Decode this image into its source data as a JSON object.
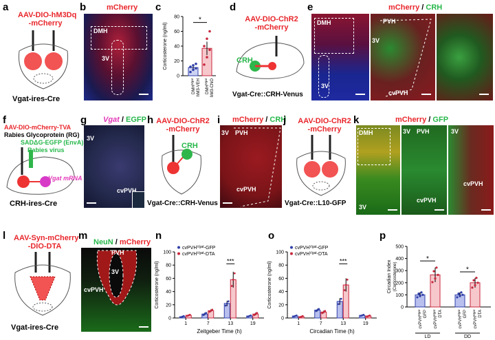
{
  "labels": {
    "a": "a",
    "b": "b",
    "c": "c",
    "d": "d",
    "e": "e",
    "f": "f",
    "g": "g",
    "h": "h",
    "i": "i",
    "j": "j",
    "k": "k",
    "l": "l",
    "m": "m",
    "n": "n",
    "o": "o",
    "p": "p"
  },
  "a": {
    "virus_line1": "AAV-DIO-hM3Dq",
    "virus_line2": "-mCherry",
    "mouse": "Vgat-ires-Cre"
  },
  "b": {
    "title": "mCherry",
    "region": "DMH",
    "ventricle": "3V"
  },
  "c": {
    "ylabel": "Corticosterone (ng/ml)",
    "sig": "*",
    "cat1_line1": "DMH",
    "cat1_sup": "Vgat",
    "cat1_line2": "hM3-VEH",
    "cat2_line1": "DMH",
    "cat2_sup": "Vgat",
    "cat2_line2": "hM3-CNO"
  },
  "d": {
    "virus_line1": "AAV-DIO-ChR2",
    "virus_line2": "-mCherry",
    "crh": "CRH",
    "mouse": "Vgat-Cre::CRH-Venus"
  },
  "e": {
    "title_red": "mCherry",
    "slash": " / ",
    "title_green": "CRH",
    "dmh": "DMH",
    "v3a": "3V",
    "pvh": "PVH",
    "v3b": "3V",
    "cvpvh": "cvPVH"
  },
  "f": {
    "virus_line1": "AAV-DIO-mCherry-TVA",
    "virus_line2": "Rabies Glycoprotein (RG)",
    "virus_line3": "SADΔG-EGFP (EnvA)",
    "virus_line4": "Rabies virus",
    "vgat_mrna": "Vgat mRNA",
    "mouse": "CRH-ires-Cre"
  },
  "g": {
    "title_m": "Vgat",
    "slash": " / ",
    "title_g": "EGFP",
    "v3": "3V",
    "cvpvh": "cvPVH"
  },
  "h": {
    "virus_line1": "AAV-DIO-ChR2",
    "virus_line2": "-mCherry",
    "crh": "CRH",
    "mouse": "Vgat-Cre::CRH-Venus"
  },
  "i": {
    "title_red": "mCherry",
    "slash": " / ",
    "title_green": "CRH",
    "v3": "3V",
    "pvh": "PVH",
    "cvpvh": "cvPVH"
  },
  "j": {
    "virus_line1": "AAV-DIO-ChR2",
    "virus_line2": "-mCherry",
    "mouse": "Vgat-Cre::L10-GFP"
  },
  "k": {
    "title_red": "mCherry",
    "slash": " / ",
    "title_green": "GFP",
    "dmh": "DMH",
    "v3a": "3V",
    "pvh": "PVH",
    "v3b": "3V",
    "cvpvh1": "cvPVH",
    "v3c": "3V",
    "cvpvh2": "cvPVH"
  },
  "l": {
    "virus_line1": "AAV-Syn-mCherry",
    "virus_line2": "-DIO-DTA",
    "mouse": "Vgat-ires-Cre"
  },
  "m": {
    "title_green": "NeuN",
    "slash": " / ",
    "title_red": "mCherry",
    "pvh": "PVH",
    "v3": "3V",
    "cvpvh": "cvPVH"
  },
  "n": {
    "ylabel": "Corticosterone (ng/ml)",
    "xlabel": "Zeitgeber Time (h)",
    "legend1_pre": "cvPVH",
    "legend1_sup": "Vgat",
    "legend1_post": "-GFP",
    "legend2_pre": "cvPVH",
    "legend2_sup": "Vgat",
    "legend2_post": "-DTA",
    "sig": "***"
  },
  "o": {
    "ylabel": "Corticosterone (ng/ml)",
    "xlabel": "Circadian Time (h)",
    "legend1_pre": "cvPVH",
    "legend1_sup": "Vgat",
    "legend1_post": "-GFP",
    "legend2_pre": "cvPVH",
    "legend2_sup": "Vgat",
    "legend2_post": "-DTA",
    "sig": "***"
  },
  "p": {
    "ylabel_line1": "Circadian Index",
    "ylabel_line2": "(Corticosterone)",
    "sig1": "*",
    "sig2": "*",
    "group1": "LD",
    "group2": "DD",
    "cat_pre": "cvPVH",
    "cat_sup": "Vgat",
    "cat_gfp": "GFP",
    "cat_dta": "DTA"
  },
  "colors": {
    "blue": "#2f3fa8",
    "red": "#c8273e",
    "pink": "#f6c8cc",
    "gfp_fill": "#b9c0ee"
  },
  "chart_data": [
    {
      "type": "bar",
      "panel": "c",
      "categories": [
        "hM3-VEH",
        "hM3-CNO"
      ],
      "values": [
        11,
        37
      ],
      "errors": [
        3,
        9
      ],
      "points": [
        [
          5,
          8,
          10,
          12,
          14,
          16
        ],
        [
          15,
          25,
          35,
          40,
          50,
          60
        ]
      ],
      "ylim": [
        0,
        80
      ],
      "yticks": [
        0,
        20,
        40,
        60,
        80
      ]
    },
    {
      "type": "bar",
      "panel": "n",
      "categories": [
        "1",
        "7",
        "13",
        "19"
      ],
      "series": [
        {
          "name": "cvPVH-GFP",
          "values": [
            2,
            6,
            22,
            3
          ],
          "errors": [
            1,
            2,
            4,
            1
          ]
        },
        {
          "name": "cvPVH-DTA",
          "values": [
            4,
            11,
            58,
            6
          ],
          "errors": [
            1,
            2,
            12,
            2
          ]
        }
      ],
      "ylim": [
        0,
        100
      ],
      "yticks": [
        0,
        20,
        40,
        60,
        80,
        100
      ]
    },
    {
      "type": "bar",
      "panel": "o",
      "categories": [
        "1",
        "7",
        "13",
        "19"
      ],
      "series": [
        {
          "name": "cvPVH-GFP",
          "values": [
            3,
            12,
            25,
            4
          ],
          "errors": [
            1,
            2,
            5,
            1
          ]
        },
        {
          "name": "cvPVH-DTA",
          "values": [
            2,
            9,
            50,
            3
          ],
          "errors": [
            1,
            2,
            10,
            1
          ]
        }
      ],
      "ylim": [
        0,
        100
      ],
      "yticks": [
        0,
        20,
        40,
        60,
        80,
        100
      ]
    },
    {
      "type": "bar",
      "panel": "p",
      "categories": [
        "LD GFP",
        "LD DTA",
        "DD GFP",
        "DD DTA"
      ],
      "values": [
        100,
        265,
        100,
        200
      ],
      "errors": [
        20,
        60,
        20,
        40
      ],
      "ylim": [
        0,
        500
      ],
      "yticks": [
        0,
        100,
        200,
        300,
        400,
        500
      ]
    }
  ]
}
